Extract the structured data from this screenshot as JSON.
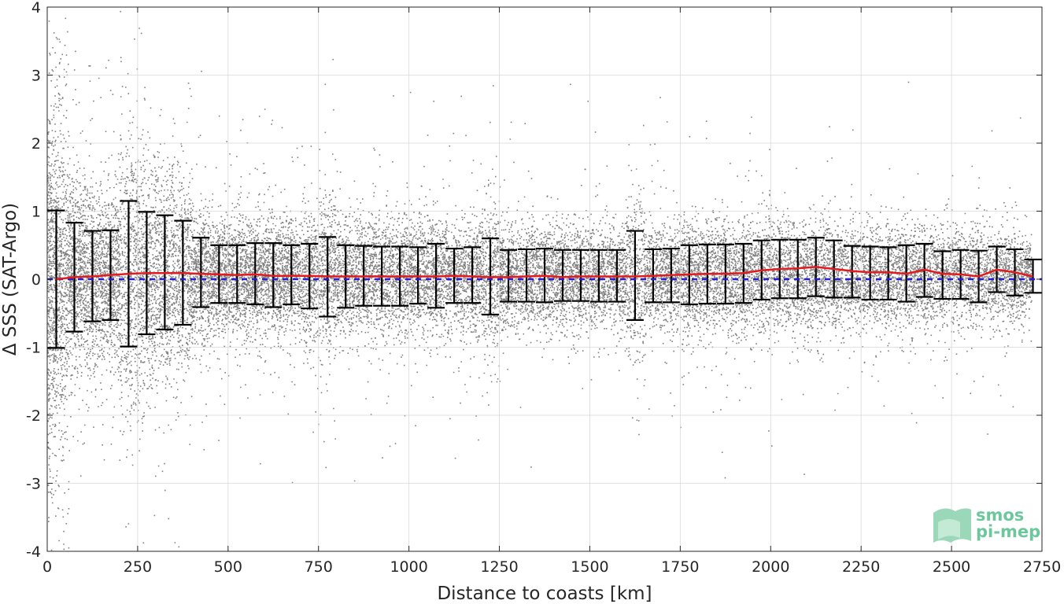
{
  "chart_data": {
    "type": "scatter",
    "title": "",
    "xlabel": "Distance to coasts [km]",
    "ylabel": "Δ SSS (SAT-Argo)",
    "xlim": [
      0,
      2750
    ],
    "ylim": [
      -4,
      4
    ],
    "xticks": [
      0,
      250,
      500,
      750,
      1000,
      1250,
      1500,
      1750,
      2000,
      2250,
      2500,
      2750
    ],
    "yticks": [
      -4,
      -3,
      -2,
      -1,
      0,
      1,
      2,
      3,
      4
    ],
    "grid": true,
    "scatter_color": "#808080",
    "mean_line_color": "#e41a1c",
    "zero_line_color": "#1f1fd1",
    "errorbar_color": "#000000",
    "bin_centers": [
      25,
      75,
      125,
      175,
      225,
      275,
      325,
      375,
      425,
      475,
      525,
      575,
      625,
      675,
      725,
      775,
      825,
      875,
      925,
      975,
      1025,
      1075,
      1125,
      1175,
      1225,
      1275,
      1325,
      1375,
      1425,
      1475,
      1525,
      1575,
      1625,
      1675,
      1725,
      1775,
      1825,
      1875,
      1925,
      1975,
      2025,
      2075,
      2125,
      2175,
      2225,
      2275,
      2325,
      2375,
      2425,
      2475,
      2525,
      2575,
      2625,
      2675,
      2725
    ],
    "bin_mean": [
      0.0,
      0.03,
      0.04,
      0.06,
      0.08,
      0.09,
      0.09,
      0.09,
      0.08,
      0.07,
      0.06,
      0.07,
      0.05,
      0.05,
      0.05,
      0.04,
      0.04,
      0.04,
      0.04,
      0.04,
      0.04,
      0.04,
      0.05,
      0.04,
      0.03,
      0.03,
      0.04,
      0.05,
      0.03,
      0.04,
      0.04,
      0.04,
      0.04,
      0.05,
      0.06,
      0.07,
      0.08,
      0.08,
      0.09,
      0.13,
      0.15,
      0.16,
      0.18,
      0.15,
      0.12,
      0.1,
      0.1,
      0.08,
      0.14,
      0.08,
      0.07,
      0.04,
      0.14,
      0.1,
      0.04
    ],
    "bin_upper": [
      1.01,
      0.83,
      0.71,
      0.72,
      1.15,
      0.99,
      0.94,
      0.86,
      0.61,
      0.5,
      0.5,
      0.53,
      0.53,
      0.5,
      0.52,
      0.62,
      0.5,
      0.49,
      0.48,
      0.48,
      0.47,
      0.52,
      0.45,
      0.47,
      0.6,
      0.43,
      0.44,
      0.45,
      0.43,
      0.43,
      0.43,
      0.43,
      0.71,
      0.44,
      0.45,
      0.5,
      0.51,
      0.51,
      0.52,
      0.57,
      0.58,
      0.58,
      0.61,
      0.57,
      0.49,
      0.48,
      0.47,
      0.5,
      0.52,
      0.41,
      0.43,
      0.42,
      0.48,
      0.44,
      0.29
    ],
    "bin_lower": [
      -1.01,
      -0.77,
      -0.62,
      -0.6,
      -0.99,
      -0.81,
      -0.74,
      -0.67,
      -0.41,
      -0.35,
      -0.35,
      -0.37,
      -0.41,
      -0.37,
      -0.43,
      -0.55,
      -0.42,
      -0.39,
      -0.39,
      -0.39,
      -0.36,
      -0.42,
      -0.35,
      -0.35,
      -0.52,
      -0.33,
      -0.33,
      -0.34,
      -0.32,
      -0.32,
      -0.33,
      -0.33,
      -0.6,
      -0.34,
      -0.34,
      -0.37,
      -0.36,
      -0.36,
      -0.35,
      -0.3,
      -0.28,
      -0.28,
      -0.25,
      -0.27,
      -0.27,
      -0.3,
      -0.3,
      -0.33,
      -0.26,
      -0.29,
      -0.29,
      -0.34,
      -0.19,
      -0.24,
      -0.2
    ],
    "zero_line_y": 0
  },
  "logo": {
    "line1": "smos",
    "line2": "pi-mep"
  }
}
